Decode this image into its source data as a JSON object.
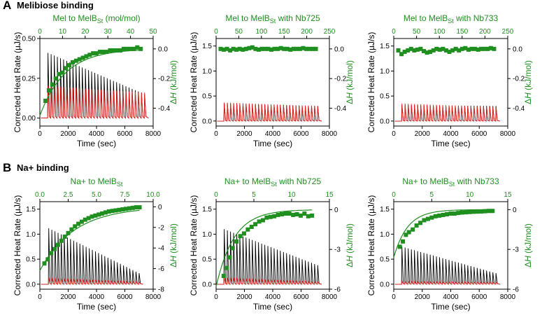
{
  "sections": [
    {
      "letter": "A",
      "title": "Melibiose binding"
    },
    {
      "letter": "B",
      "title": "Na+ binding"
    }
  ],
  "colors": {
    "titration": "#000000",
    "dilution": "#e8211d",
    "enthalpy": "#1f8f1f",
    "fit": "#1f8f1f"
  },
  "chart_data": [
    {
      "type": "line",
      "title": "Mel to MelB",
      "title_sub": "St",
      "title_suffix": " (mol/mol)",
      "xlabel": "Time (sec)",
      "ylabel": "Corrected Heat Rate (µJ/s)",
      "y2label_prefix": "Δ",
      "y2label_italic": "H",
      "y2label_suffix": " (kJ/mol)",
      "xlim": [
        0,
        8000
      ],
      "xticks": [
        0,
        2000,
        4000,
        6000,
        8000
      ],
      "ylim": [
        -0.05,
        0.5
      ],
      "yticks": [
        0,
        0.25,
        0.5
      ],
      "yticklabels": [
        "0.00",
        "0.25",
        "0.50"
      ],
      "x2lim": [
        0,
        50
      ],
      "x2ticks": [
        0,
        10,
        20,
        30,
        40,
        50
      ],
      "y2lim": [
        -0.52,
        0.07
      ],
      "y2ticks": [
        0,
        -0.2,
        -0.4
      ],
      "y2ticklabels": [
        "0.0",
        "-0.2",
        "-0.4"
      ],
      "peaks": {
        "start": 550,
        "interval": 220,
        "count": 32,
        "first_black": 0.41,
        "last_black": 0.15,
        "first_red": 0.2,
        "last_red": 0.16
      },
      "enthalpy_points": {
        "x": [
          2.5,
          4,
          5.5,
          7,
          8.5,
          10,
          11.5,
          13,
          14.5,
          16,
          17.5,
          19,
          20.5,
          22,
          23.5,
          25,
          26.5,
          28,
          29.5,
          31,
          32.5,
          34,
          35.5,
          37,
          38.5,
          40,
          41.5,
          43,
          44.5
        ],
        "y": [
          -0.35,
          -0.28,
          -0.24,
          -0.2,
          -0.17,
          -0.16,
          -0.13,
          -0.11,
          -0.09,
          -0.08,
          -0.07,
          -0.06,
          -0.05,
          -0.04,
          -0.03,
          -0.03,
          -0.02,
          -0.02,
          -0.02,
          -0.01,
          -0.01,
          -0.01,
          -0.01,
          0.0,
          0.0,
          0.0,
          0.0,
          0.01,
          0.0
        ]
      },
      "fit": {
        "a": -0.45,
        "k": 0.09
      }
    },
    {
      "type": "line",
      "title": "Mel to MelB",
      "title_sub": "St",
      "title_suffix": " with Nb725",
      "xlabel": "Time (sec)",
      "ylabel": "Corrected Heat Rate (µJ/s)",
      "y2label_prefix": "Δ",
      "y2label_italic": "H",
      "y2label_suffix": " (kJ/mol)",
      "xlim": [
        0,
        8000
      ],
      "xticks": [
        0,
        2000,
        4000,
        6000,
        8000
      ],
      "ylim": [
        -0.1,
        1.65
      ],
      "yticks": [
        0,
        0.5,
        1.0,
        1.5
      ],
      "yticklabels": [
        "0.0",
        "0.5",
        "1.0",
        "1.5"
      ],
      "x2lim": [
        0,
        250
      ],
      "x2ticks": [
        0,
        50,
        100,
        150,
        200,
        250
      ],
      "y2lim": [
        -0.52,
        0.07
      ],
      "y2ticks": [
        0,
        -0.2,
        -0.4
      ],
      "y2ticklabels": [
        "0.0",
        "-0.2",
        "-0.4"
      ],
      "peaks": {
        "start": 550,
        "interval": 220,
        "count": 31,
        "first_black": 0.35,
        "last_black": 0.3,
        "first_red": 0.37,
        "last_red": 0.3
      },
      "enthalpy_points": {
        "x": [
          10,
          17,
          24,
          31,
          38,
          45,
          52,
          59,
          66,
          73,
          80,
          87,
          94,
          101,
          108,
          115,
          122,
          129,
          136,
          143,
          150,
          157,
          164,
          171,
          178,
          185,
          192,
          199,
          206,
          213,
          220
        ],
        "y": [
          0.0,
          -0.005,
          0.0,
          -0.01,
          0.0,
          -0.005,
          0.0,
          -0.005,
          0.0,
          0.005,
          0.01,
          0.0,
          -0.005,
          0.0,
          0.0,
          0.0,
          -0.005,
          0.0,
          0.0,
          0.005,
          0.0,
          0.0,
          -0.005,
          0.0,
          0.0,
          0.0,
          0.005,
          0.0,
          0.0,
          0.0,
          0.0
        ]
      }
    },
    {
      "type": "line",
      "title": "Mel to MelB",
      "title_sub": "St",
      "title_suffix": " with Nb733",
      "xlabel": "Time (sec)",
      "ylabel": "Corrected Heat Rate (µJ/s)",
      "y2label_prefix": "Δ",
      "y2label_italic": "H",
      "y2label_suffix": " (kJ/mol)",
      "xlim": [
        0,
        8000
      ],
      "xticks": [
        0,
        2000,
        4000,
        6000,
        8000
      ],
      "ylim": [
        -0.1,
        1.65
      ],
      "yticks": [
        0,
        0.5,
        1.0,
        1.5
      ],
      "yticklabels": [
        "0.0",
        "0.5",
        "1.0",
        "1.5"
      ],
      "x2lim": [
        0,
        250
      ],
      "x2ticks": [
        0,
        50,
        100,
        150,
        200,
        250
      ],
      "y2lim": [
        -0.52,
        0.07
      ],
      "y2ticks": [
        0,
        -0.2,
        -0.4
      ],
      "y2ticklabels": [
        "0.0",
        "-0.2",
        "-0.4"
      ],
      "peaks": {
        "start": 550,
        "interval": 220,
        "count": 31,
        "first_black": 0.32,
        "last_black": 0.3,
        "first_red": 0.35,
        "last_red": 0.28
      },
      "enthalpy_points": {
        "x": [
          10,
          17,
          24,
          31,
          38,
          45,
          52,
          59,
          66,
          73,
          80,
          87,
          94,
          101,
          108,
          115,
          122,
          129,
          136,
          143,
          150,
          157,
          164,
          171,
          178,
          185,
          192,
          199,
          206,
          213,
          220
        ],
        "y": [
          -0.01,
          -0.035,
          -0.02,
          -0.01,
          0.0,
          -0.01,
          -0.005,
          0.0,
          -0.015,
          -0.025,
          -0.02,
          -0.01,
          0.0,
          -0.005,
          0.0,
          -0.01,
          -0.02,
          -0.01,
          0.0,
          -0.01,
          0.0,
          0.005,
          -0.005,
          0.0,
          0.0,
          -0.005,
          0.0,
          0.0,
          0.0,
          0.005,
          0.0
        ]
      }
    },
    {
      "type": "line",
      "title": "Na+ to MelB",
      "title_sub": "St",
      "title_suffix": "",
      "xlabel": "Time (sec)",
      "ylabel": "Corrected Heat Rate (µJ/s)",
      "y2label_prefix": "Δ",
      "y2label_italic": "H",
      "y2label_suffix": " (kJ/mol)",
      "xlim": [
        0,
        8000
      ],
      "xticks": [
        0,
        2000,
        4000,
        6000,
        8000
      ],
      "ylim": [
        -0.1,
        1.65
      ],
      "yticks": [
        0,
        0.5,
        1.0,
        1.5
      ],
      "yticklabels": [
        "0.0",
        "0.5",
        "1.0",
        "1.5"
      ],
      "x2lim": [
        0,
        10
      ],
      "x2ticks": [
        0,
        2.5,
        5,
        7.5,
        10
      ],
      "x2ticklabels": [
        "0.0",
        "2.5",
        "5.0",
        "7.5",
        "10.0"
      ],
      "y2lim": [
        -8,
        0.5
      ],
      "y2ticks": [
        0,
        -2,
        -4,
        -6,
        -8
      ],
      "y2ticklabels": [
        "0",
        "-2",
        "-4",
        "-6",
        "-8"
      ],
      "peaks": {
        "start": 600,
        "interval": 220,
        "count": 30,
        "first_black": 1.12,
        "last_black": 0.22,
        "first_red": 0.13,
        "last_red": 0.05
      },
      "enthalpy_points": {
        "x": [
          0.4,
          0.7,
          1.0,
          1.3,
          1.6,
          1.9,
          2.2,
          2.5,
          2.8,
          3.1,
          3.4,
          3.7,
          4.0,
          4.3,
          4.6,
          4.9,
          5.2,
          5.5,
          5.8,
          6.1,
          6.4,
          6.7,
          7.0,
          7.3,
          7.6,
          7.9,
          8.2,
          8.5,
          8.8
        ],
        "y": [
          -5.5,
          -5.1,
          -4.5,
          -4.1,
          -3.7,
          -3.3,
          -2.9,
          -2.55,
          -2.2,
          -1.9,
          -1.65,
          -1.45,
          -1.25,
          -1.1,
          -0.95,
          -0.85,
          -0.75,
          -0.65,
          -0.55,
          -0.45,
          -0.4,
          -0.35,
          -0.3,
          -0.25,
          -0.2,
          -0.15,
          -0.1,
          -0.05,
          -0.05
        ]
      },
      "fit": {
        "a": -6.2,
        "k": 0.33
      }
    },
    {
      "type": "line",
      "title": "Na+ to MelB",
      "title_sub": "St",
      "title_suffix": " with Nb725",
      "xlabel": "Time (sec)",
      "ylabel": "Corrected Heat Rate (µJ/s)",
      "y2label_prefix": "Δ",
      "y2label_italic": "H",
      "y2label_suffix": " (kJ/mol)",
      "xlim": [
        0,
        8000
      ],
      "xticks": [
        0,
        2000,
        4000,
        6000,
        8000
      ],
      "ylim": [
        -0.1,
        1.65
      ],
      "yticks": [
        0,
        0.5,
        1.0,
        1.5
      ],
      "yticklabels": [
        "0.0",
        "0.5",
        "1.0",
        "1.5"
      ],
      "x2lim": [
        0,
        15
      ],
      "x2ticks": [
        0,
        5,
        10,
        15
      ],
      "y2lim": [
        -6,
        0.6
      ],
      "y2ticks": [
        0,
        -3,
        -6
      ],
      "y2ticklabels": [
        "0",
        "-3",
        "-6"
      ],
      "peaks": {
        "start": 550,
        "interval": 220,
        "count": 31,
        "first_black": 1.1,
        "last_black": 0.38,
        "first_red": 0.14,
        "last_red": 0.05
      },
      "enthalpy_points": {
        "x": [
          1.0,
          1.4,
          1.8,
          2.2,
          2.7,
          3.2,
          3.7,
          4.2,
          4.7,
          5.2,
          5.7,
          6.2,
          6.7,
          7.2,
          7.7,
          8.2,
          8.7,
          9.2,
          9.7,
          10.2,
          10.7,
          11.2,
          11.7,
          12.2,
          12.7
        ],
        "y": [
          -5.0,
          -4.4,
          -3.6,
          -2.9,
          -2.4,
          -2.0,
          -1.8,
          -1.5,
          -1.3,
          -1.1,
          -0.9,
          -0.8,
          -0.6,
          -0.55,
          -0.5,
          -0.4,
          -0.35,
          -0.3,
          -0.3,
          -0.4,
          -0.35,
          -0.45,
          -0.3,
          -0.5,
          -0.45
        ]
      },
      "fit": {
        "a": -5.8,
        "k": 0.42
      }
    },
    {
      "type": "line",
      "title": "Na+ to MelB",
      "title_sub": "St",
      "title_suffix": " with Nb733",
      "xlabel": "Time (sec)",
      "ylabel": "Corrected Heat Rate (µJ/s)",
      "y2label_prefix": "Δ",
      "y2label_italic": "H",
      "y2label_suffix": " (kJ/mol)",
      "xlim": [
        0,
        8000
      ],
      "xticks": [
        0,
        2000,
        4000,
        6000,
        8000
      ],
      "ylim": [
        -0.1,
        1.65
      ],
      "yticks": [
        0,
        0.5,
        1.0,
        1.5
      ],
      "yticklabels": [
        "0.0",
        "0.5",
        "1.0",
        "1.5"
      ],
      "x2lim": [
        0,
        15
      ],
      "x2ticks": [
        0,
        5,
        10,
        15
      ],
      "y2lim": [
        -6,
        0.6
      ],
      "y2ticks": [
        0,
        -3,
        -6
      ],
      "y2ticklabels": [
        "0",
        "-3",
        "-6"
      ],
      "peaks": {
        "start": 550,
        "interval": 220,
        "count": 31,
        "first_black": 0.75,
        "last_black": 0.22,
        "first_red": 0.06,
        "last_red": 0.04
      },
      "enthalpy_points": {
        "x": [
          0.8,
          1.2,
          1.6,
          2.0,
          2.5,
          3.0,
          3.5,
          4.0,
          4.5,
          5.0,
          5.5,
          6.0,
          6.5,
          7.0,
          7.5,
          8.0,
          8.5,
          9.0,
          9.5,
          10.0,
          10.5,
          11.0,
          11.5,
          12.0,
          12.5,
          13.0
        ],
        "y": [
          -2.8,
          -2.4,
          -1.9,
          -1.7,
          -1.5,
          -1.2,
          -1.0,
          -0.8,
          -0.7,
          -0.6,
          -0.5,
          -0.45,
          -0.4,
          -0.35,
          -0.3,
          -0.3,
          -0.25,
          -0.22,
          -0.2,
          -0.18,
          -0.16,
          -0.15,
          -0.14,
          -0.12,
          -0.1,
          -0.1
        ]
      },
      "fit": {
        "a": -3.6,
        "k": 0.55
      }
    }
  ]
}
